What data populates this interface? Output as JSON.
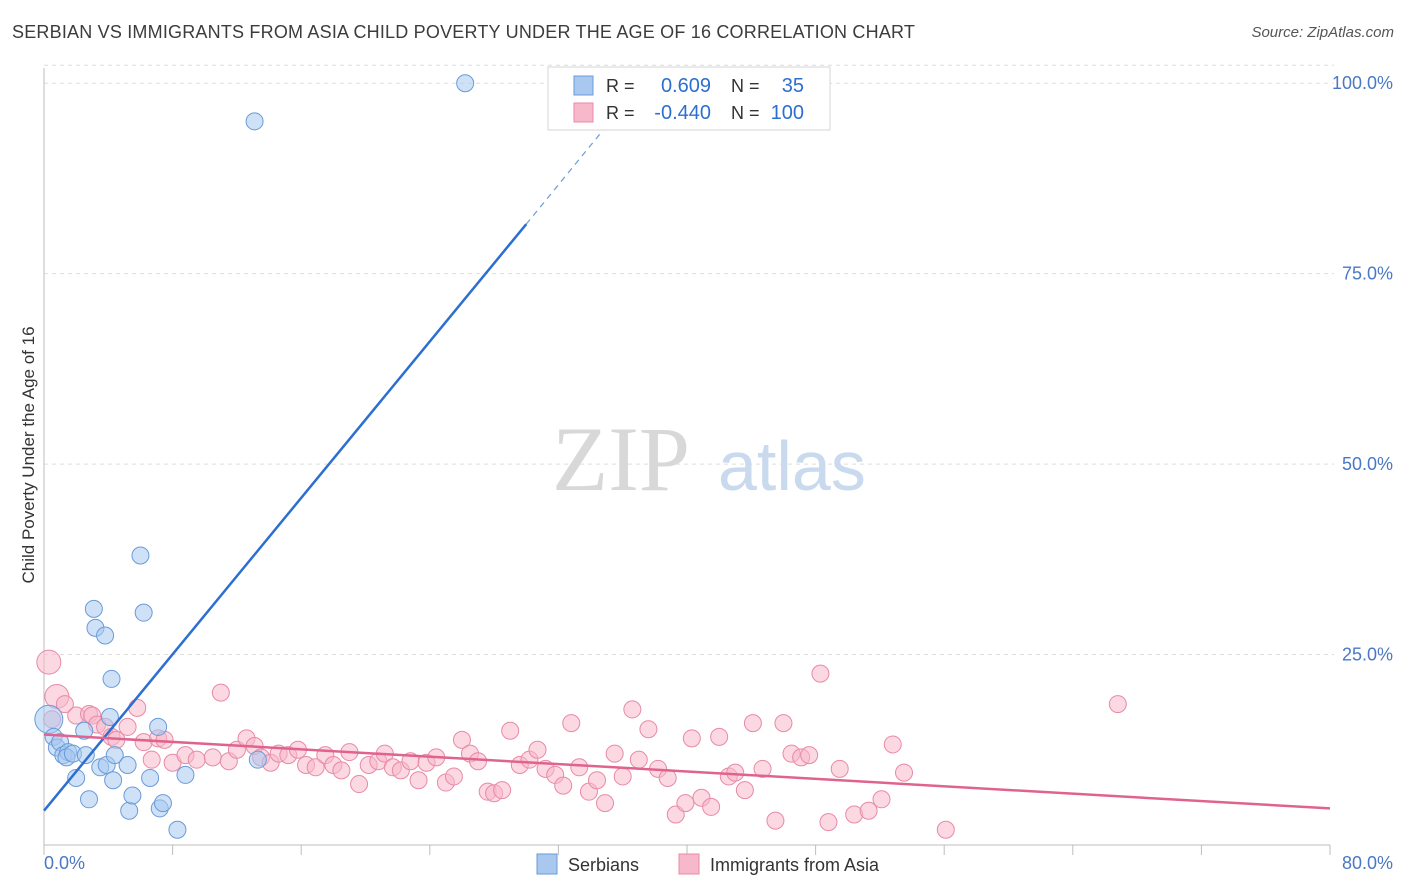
{
  "title": "SERBIAN VS IMMIGRANTS FROM ASIA CHILD POVERTY UNDER THE AGE OF 16 CORRELATION CHART",
  "source": "Source: ZipAtlas.com",
  "watermark": {
    "zip": "ZIP",
    "atlas": "atlas"
  },
  "colors": {
    "blue_fill": "#a8c8f0",
    "blue_stroke": "#6a9bd8",
    "blue_line": "#2c6fd1",
    "pink_fill": "#f7b8cb",
    "pink_stroke": "#e88aa7",
    "pink_line": "#e0638f",
    "tick_label": "#4a78c4",
    "grid": "#dddddd"
  },
  "legend": {
    "rows": [
      {
        "r_label": "R =",
        "r_value": "0.609",
        "n_label": "N =",
        "n_value": "35"
      },
      {
        "r_label": "R =",
        "r_value": "-0.440",
        "n_label": "N =",
        "n_value": "100"
      }
    ]
  },
  "bottom_legend": [
    "Serbians",
    "Immigrants from Asia"
  ],
  "chart_data": {
    "type": "scatter",
    "title": "SERBIAN VS IMMIGRANTS FROM ASIA CHILD POVERTY UNDER THE AGE OF 16 CORRELATION CHART",
    "xlabel": "",
    "ylabel": "Child Poverty Under the Age of 16",
    "xlim": [
      0,
      80
    ],
    "ylim": [
      0,
      102
    ],
    "x_tick_labels": [
      "0.0%",
      "80.0%"
    ],
    "y_ticks": [
      25,
      50,
      75,
      100
    ],
    "y_tick_labels": [
      "25.0%",
      "50.0%",
      "75.0%",
      "100.0%"
    ],
    "grid": true,
    "series": [
      {
        "name": "Serbians",
        "R": 0.609,
        "N": 35,
        "trend": {
          "x0": 0,
          "y0": 4.5,
          "x1": 30.0,
          "y1": 81.5,
          "dash_x1": 36.0,
          "dash_y1": 97.0
        },
        "points": [
          [
            0.3,
            16.5
          ],
          [
            0.6,
            14.2
          ],
          [
            0.8,
            12.8
          ],
          [
            1.0,
            13.5
          ],
          [
            1.2,
            11.8
          ],
          [
            1.5,
            12.2
          ],
          [
            1.4,
            11.5
          ],
          [
            1.8,
            12.0
          ],
          [
            2.0,
            8.8
          ],
          [
            2.5,
            15.0
          ],
          [
            2.6,
            11.8
          ],
          [
            2.8,
            6.0
          ],
          [
            3.1,
            31.0
          ],
          [
            3.2,
            28.5
          ],
          [
            3.5,
            10.2
          ],
          [
            3.8,
            27.5
          ],
          [
            3.9,
            10.5
          ],
          [
            4.1,
            16.8
          ],
          [
            4.2,
            21.8
          ],
          [
            4.3,
            8.5
          ],
          [
            4.4,
            11.8
          ],
          [
            5.2,
            10.5
          ],
          [
            5.3,
            4.5
          ],
          [
            5.5,
            6.5
          ],
          [
            6.0,
            38.0
          ],
          [
            6.2,
            30.5
          ],
          [
            6.6,
            8.8
          ],
          [
            7.1,
            15.5
          ],
          [
            7.2,
            4.8
          ],
          [
            7.4,
            5.5
          ],
          [
            8.3,
            2.0
          ],
          [
            8.8,
            9.2
          ],
          [
            13.1,
            95.0
          ],
          [
            13.3,
            11.2
          ],
          [
            26.2,
            100.0
          ]
        ]
      },
      {
        "name": "Immigrants from Asia",
        "R": -0.44,
        "N": 100,
        "trend": {
          "x0": 0,
          "y0": 14.5,
          "x1": 80,
          "y1": 4.8
        },
        "points": [
          [
            0.3,
            24.0
          ],
          [
            0.8,
            19.5
          ],
          [
            1.3,
            18.5
          ],
          [
            2.0,
            17.0
          ],
          [
            2.8,
            17.2
          ],
          [
            3.0,
            17.0
          ],
          [
            3.3,
            15.8
          ],
          [
            3.8,
            15.5
          ],
          [
            4.2,
            14.2
          ],
          [
            4.5,
            13.8
          ],
          [
            5.2,
            15.5
          ],
          [
            5.8,
            18.0
          ],
          [
            6.2,
            13.5
          ],
          [
            6.7,
            11.2
          ],
          [
            7.1,
            14.0
          ],
          [
            7.5,
            13.8
          ],
          [
            8.0,
            10.8
          ],
          [
            8.8,
            11.8
          ],
          [
            9.5,
            11.2
          ],
          [
            10.5,
            11.5
          ],
          [
            11.0,
            20.0
          ],
          [
            11.5,
            11.0
          ],
          [
            12.0,
            12.5
          ],
          [
            12.6,
            14.0
          ],
          [
            13.1,
            13.0
          ],
          [
            13.5,
            11.5
          ],
          [
            14.1,
            10.8
          ],
          [
            14.6,
            12.0
          ],
          [
            15.2,
            11.8
          ],
          [
            15.8,
            12.5
          ],
          [
            16.3,
            10.5
          ],
          [
            16.9,
            10.2
          ],
          [
            17.5,
            11.8
          ],
          [
            18.0,
            10.5
          ],
          [
            18.5,
            9.8
          ],
          [
            19.0,
            12.2
          ],
          [
            19.6,
            8.0
          ],
          [
            20.2,
            10.5
          ],
          [
            20.8,
            11.0
          ],
          [
            21.2,
            12.0
          ],
          [
            21.7,
            10.2
          ],
          [
            22.2,
            9.8
          ],
          [
            22.8,
            11.0
          ],
          [
            23.3,
            8.5
          ],
          [
            23.8,
            10.8
          ],
          [
            24.4,
            11.5
          ],
          [
            25.0,
            8.2
          ],
          [
            25.5,
            9.0
          ],
          [
            26.0,
            13.8
          ],
          [
            26.5,
            12.0
          ],
          [
            27.0,
            11.0
          ],
          [
            27.6,
            7.0
          ],
          [
            28.0,
            6.8
          ],
          [
            28.5,
            7.2
          ],
          [
            29.0,
            15.0
          ],
          [
            29.6,
            10.5
          ],
          [
            30.2,
            11.2
          ],
          [
            30.7,
            12.5
          ],
          [
            31.2,
            10.0
          ],
          [
            31.8,
            9.2
          ],
          [
            32.3,
            7.8
          ],
          [
            32.8,
            16.0
          ],
          [
            33.3,
            10.2
          ],
          [
            33.9,
            7.0
          ],
          [
            34.4,
            8.5
          ],
          [
            34.9,
            5.5
          ],
          [
            35.5,
            12.0
          ],
          [
            36.0,
            9.0
          ],
          [
            36.6,
            17.8
          ],
          [
            37.0,
            11.2
          ],
          [
            37.6,
            15.2
          ],
          [
            38.2,
            10.0
          ],
          [
            38.8,
            8.8
          ],
          [
            39.3,
            4.0
          ],
          [
            39.9,
            5.5
          ],
          [
            40.3,
            14.0
          ],
          [
            40.9,
            6.2
          ],
          [
            41.5,
            5.0
          ],
          [
            42.0,
            14.2
          ],
          [
            42.6,
            9.0
          ],
          [
            43.0,
            9.5
          ],
          [
            43.6,
            7.2
          ],
          [
            44.1,
            16.0
          ],
          [
            44.7,
            10.0
          ],
          [
            45.5,
            3.2
          ],
          [
            46.0,
            16.0
          ],
          [
            46.5,
            12.0
          ],
          [
            47.1,
            11.5
          ],
          [
            47.6,
            11.8
          ],
          [
            48.3,
            22.5
          ],
          [
            48.8,
            3.0
          ],
          [
            49.5,
            10.0
          ],
          [
            50.4,
            4.0
          ],
          [
            51.3,
            4.5
          ],
          [
            52.1,
            6.0
          ],
          [
            52.8,
            13.2
          ],
          [
            53.5,
            9.5
          ],
          [
            56.1,
            2.0
          ],
          [
            66.8,
            18.5
          ],
          [
            0.5,
            16.5
          ]
        ]
      }
    ]
  }
}
